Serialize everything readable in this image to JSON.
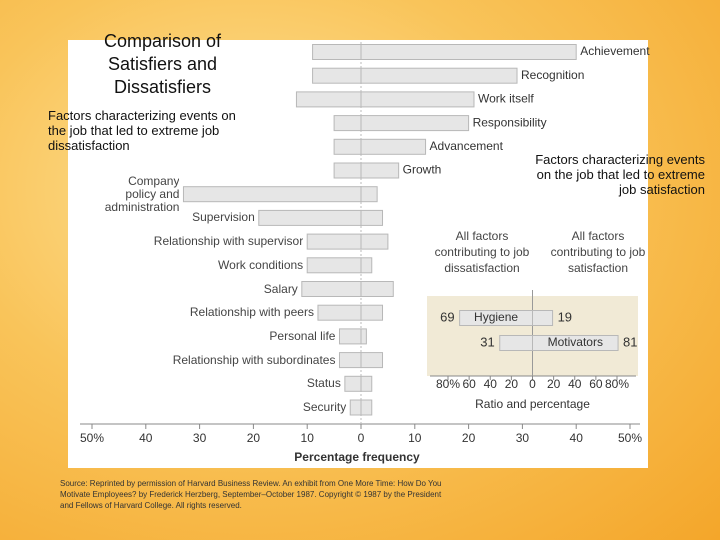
{
  "chart_data": [
    {
      "type": "bar",
      "orientation": "horizontal",
      "title": "Comparison of Satisfiers and Dissatisfiers",
      "categories": [
        "Achievement",
        "Recognition",
        "Work itself",
        "Responsibility",
        "Advancement",
        "Growth",
        "Company policy and administration",
        "Supervision",
        "Relationship with supervisor",
        "Work conditions",
        "Salary",
        "Relationship with peers",
        "Personal life",
        "Relationship with subordinates",
        "Status",
        "Security"
      ],
      "series": [
        {
          "name": "Factors characterizing events on the job that led to extreme job dissatisfaction",
          "color": "#e6e6e6",
          "values": [
            -9,
            -9,
            -12,
            -5,
            -5,
            -5,
            -33,
            -19,
            -10,
            -10,
            -11,
            -8,
            -4,
            -4,
            -3,
            -2
          ]
        },
        {
          "name": "Factors characterizing events on the job that led to extreme job satisfaction",
          "color": "#e6e6e6",
          "values": [
            40,
            29,
            21,
            20,
            12,
            7,
            3,
            4,
            5,
            2,
            6,
            4,
            1,
            4,
            2,
            2
          ]
        }
      ],
      "xlim": [
        -50,
        50
      ],
      "xticks": [
        {
          "value": -50,
          "label": "50%"
        },
        {
          "value": -40,
          "label": "40"
        },
        {
          "value": -30,
          "label": "30"
        },
        {
          "value": -20,
          "label": "20"
        },
        {
          "value": -10,
          "label": "10"
        },
        0,
        10,
        20,
        30,
        40,
        {
          "value": 50,
          "label": "50%"
        }
      ],
      "xlabel": "Percentage frequency"
    },
    {
      "type": "bar",
      "orientation": "horizontal",
      "categories": [
        "Hygiene",
        "Motivators"
      ],
      "series": [
        {
          "name": "All factors contributing to job dissatisfaction",
          "color": "#e6e6e6",
          "values": [
            -69,
            -31
          ],
          "value_labels": [
            "69",
            "31"
          ]
        },
        {
          "name": "All factors contributing to job satisfaction",
          "color": "#e6e6e6",
          "values": [
            19,
            81
          ],
          "value_labels": [
            "19",
            "81"
          ]
        }
      ],
      "xlim": [
        -80,
        80
      ],
      "xticks": [
        {
          "value": -80,
          "label": "80%"
        },
        {
          "value": -60,
          "label": "60"
        },
        {
          "value": -40,
          "label": "40"
        },
        {
          "value": -20,
          "label": "20"
        },
        0,
        20,
        40,
        60,
        {
          "value": 80,
          "label": "80%"
        }
      ],
      "xlabel": "Ratio and percentage"
    }
  ],
  "source": "Source: Reprinted by permission of Harvard Business Review. An exhibit from One More Time: How Do You Motivate Employees? by Frederick Herzberg, September–October 1987. Copyright © 1987 by the President and Fellows of Harvard College. All rights reserved."
}
